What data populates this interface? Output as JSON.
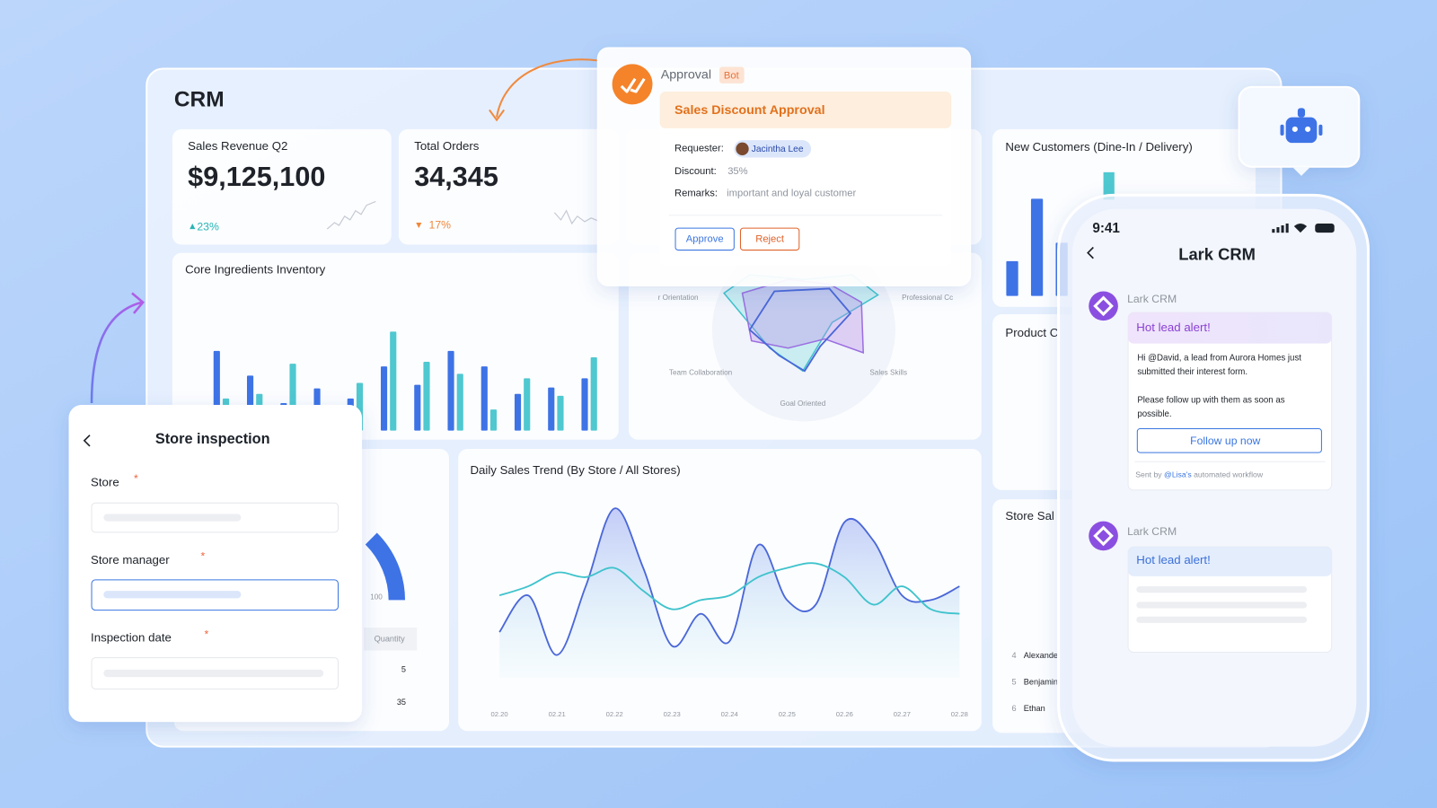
{
  "dashboard": {
    "title": "CRM",
    "revenue": {
      "title": "Sales Revenue Q2",
      "value": "$9,125,100",
      "change": "23%"
    },
    "orders": {
      "title": "Total Orders",
      "value": "34,345",
      "change": "17%"
    },
    "inventory": {
      "title": "Core Ingredients Inventory",
      "chart": {
        "type": "bar",
        "ylim": [
          0,
          120
        ],
        "series": [
          {
            "color": "#3e73e6",
            "values": [
              87,
              60,
              30,
              46,
              35,
              70,
              50,
              87,
              70,
              40,
              47,
              57
            ]
          },
          {
            "color": "#4fc8d0",
            "values": [
              35,
              40,
              73,
              null,
              52,
              108,
              75,
              62,
              23,
              57,
              38,
              80
            ]
          }
        ]
      }
    },
    "radar": {
      "labels": [
        "r Orientation",
        "Professional Cc",
        "Team Collaboration",
        "Sales Skills",
        "Goal Oriented"
      ]
    },
    "new_customers": {
      "title": "New Customers (Dine-In / Delivery)",
      "chart": {
        "type": "bar",
        "ylim": [
          0,
          120
        ],
        "series": [
          {
            "color": "#3e73e6",
            "values": [
              38,
              106,
              58
            ]
          }
        ]
      }
    },
    "product": {
      "title": "Product C"
    },
    "store_sales": {
      "title": "Store Sal",
      "rows": [
        [
          "4",
          "Alexande"
        ],
        [
          "5",
          "Benjamin"
        ],
        [
          "6",
          "Ethan"
        ]
      ]
    },
    "gauge": {
      "tick": "100",
      "column": "Quantity",
      "cells": [
        "5",
        "35"
      ]
    },
    "sales_trend": {
      "title": "Daily Sales Trend (By Store / All Stores)",
      "chart": {
        "type": "line",
        "ylim": [
          0,
          200
        ],
        "categories": [
          "02.20",
          null,
          "02.21",
          null,
          "02.22",
          null,
          "02.23",
          null,
          "02.24",
          null,
          "02.25",
          null,
          "02.26",
          null,
          "02.27",
          null,
          "02.28"
        ],
        "series": [
          {
            "color": "#4a67d8",
            "values": [
              50,
              90,
              25,
              100,
              185,
              120,
              35,
              70,
              40,
              145,
              85,
              80,
              170,
              150,
              90,
              85,
              100
            ]
          },
          {
            "color": "#3fc3cc",
            "values": [
              90,
              100,
              115,
              110,
              120,
              95,
              75,
              85,
              90,
              110,
              120,
              125,
              110,
              80,
              100,
              75,
              70
            ]
          }
        ]
      }
    }
  },
  "approval": {
    "app": "Approval",
    "tag": "Bot",
    "header": "Sales Discount Approval",
    "fields": [
      {
        "label": "Requester:",
        "value": "Jacintha Lee"
      },
      {
        "label": "Discount:",
        "value": "35%"
      },
      {
        "label": "Remarks:",
        "value": "important and loyal customer"
      }
    ],
    "actions": [
      "Approve",
      "Reject"
    ]
  },
  "store_inspection": {
    "title": "Store inspection",
    "fields": [
      "Store",
      "Store manager",
      "Inspection date"
    ],
    "required_mark": "*"
  },
  "phone": {
    "time": "9:41",
    "title": "Lark CRM",
    "messages": [
      {
        "sender": "Lark CRM",
        "header": "Hot lead alert!",
        "body": [
          "Hi @David, a lead from Aurora Homes just",
          "submitted their interest form.",
          "Please follow up with them as soon as",
          "possible."
        ],
        "button": "Follow up now",
        "footer": [
          "Sent by",
          "@Lisa's",
          "automated workflow"
        ]
      },
      {
        "sender": "Lark CRM",
        "header": "Hot lead alert!"
      }
    ]
  }
}
